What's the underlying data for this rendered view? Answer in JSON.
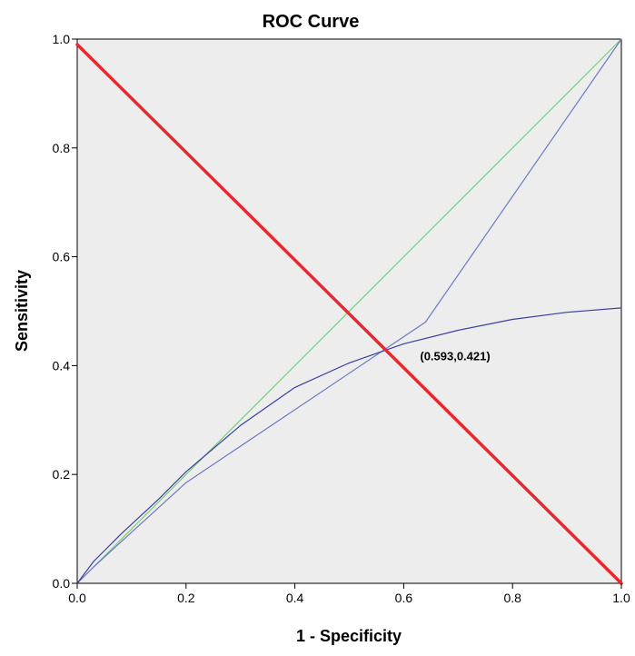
{
  "chart_data": {
    "type": "line",
    "title": "ROC Curve",
    "xlabel": "1 - Specificity",
    "ylabel": "Sensitivity",
    "xlim": [
      0,
      1
    ],
    "ylim": [
      0,
      1
    ],
    "xticks": [
      "0.0",
      "0.2",
      "0.4",
      "0.6",
      "0.8",
      "1.0"
    ],
    "yticks": [
      "0.0",
      "0.2",
      "0.4",
      "0.6",
      "0.8",
      "1.0"
    ],
    "grid": false,
    "plot_background": "#ededed",
    "series": [
      {
        "color": "#7fc97f",
        "points": [
          [
            0,
            0
          ],
          [
            1,
            1
          ]
        ]
      },
      {
        "color": "#6f79c2",
        "points": [
          [
            0,
            0
          ],
          [
            0.03,
            0.03
          ],
          [
            0.2,
            0.185
          ],
          [
            0.64,
            0.48
          ],
          [
            1,
            1
          ]
        ]
      },
      {
        "color": "#3b3f9e",
        "points": [
          [
            0,
            0
          ],
          [
            0.03,
            0.04
          ],
          [
            0.08,
            0.09
          ],
          [
            0.15,
            0.155
          ],
          [
            0.2,
            0.205
          ],
          [
            0.3,
            0.29
          ],
          [
            0.4,
            0.36
          ],
          [
            0.5,
            0.405
          ],
          [
            0.6,
            0.44
          ],
          [
            0.7,
            0.465
          ],
          [
            0.8,
            0.485
          ],
          [
            0.9,
            0.498
          ],
          [
            1,
            0.506
          ]
        ]
      },
      {
        "color": "#e8282e",
        "points": [
          [
            0,
            0.99
          ],
          [
            1,
            0
          ]
        ]
      }
    ],
    "annotations": [
      {
        "text": "(0.593,0.421)",
        "x": 0.63,
        "y": 0.41
      }
    ]
  }
}
